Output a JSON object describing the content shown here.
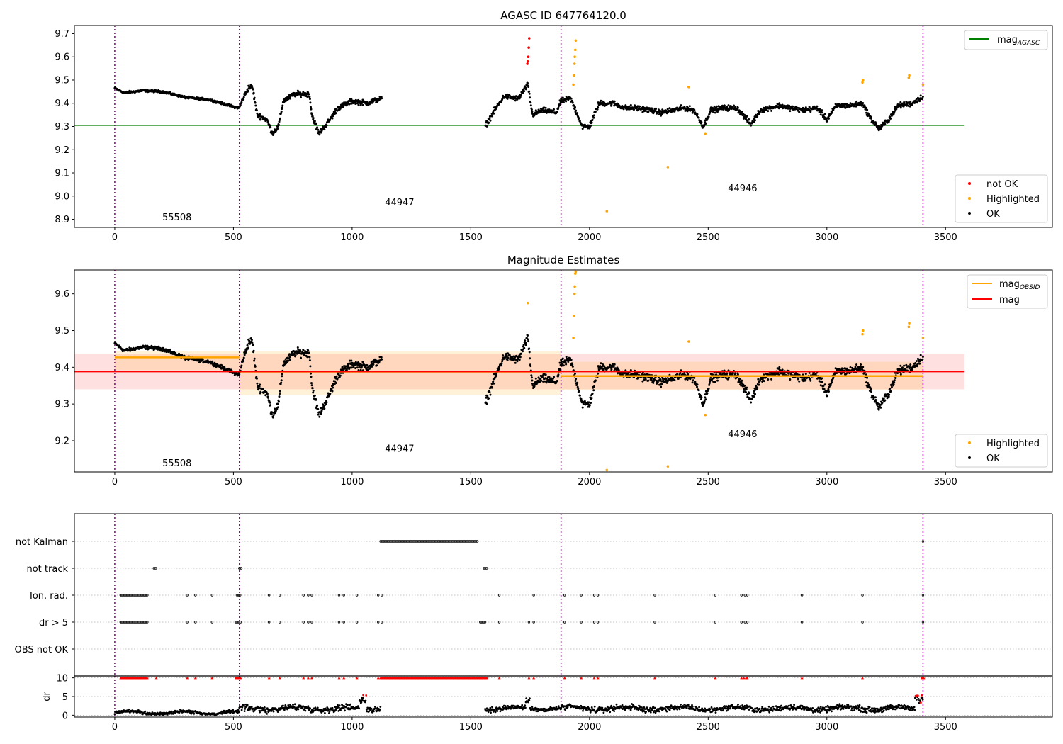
{
  "figure": {
    "panel1_title": "AGASC ID 647764120.0",
    "panel2_title": "Magnitude Estimates"
  },
  "chart_data": [
    {
      "type": "scatter",
      "title": "AGASC ID 647764120.0",
      "xlim": [
        -170,
        3950
      ],
      "ylim": [
        8.865,
        9.735
      ],
      "xticks": [
        0,
        500,
        1000,
        1500,
        2000,
        2500,
        3000,
        3500
      ],
      "yticks": [
        8.9,
        9.0,
        9.1,
        9.2,
        9.3,
        9.4,
        9.5,
        9.6,
        9.7
      ],
      "obsid_boundaries": [
        0,
        525,
        1880,
        3405
      ],
      "obsid_labels": [
        {
          "text": "55508",
          "x": 262,
          "y": 8.895
        },
        {
          "text": "44947",
          "x": 1200,
          "y": 8.96
        },
        {
          "text": "44946",
          "x": 2645,
          "y": 9.02
        }
      ],
      "reference_lines": [
        {
          "name": "mag_AGASC",
          "y": 9.305,
          "x": [
            -170,
            3580
          ],
          "color": "#008000"
        }
      ],
      "series": [
        {
          "name": "not OK",
          "color": "#ff0000",
          "points": [
            [
              1740,
              9.58
            ],
            [
              1742,
              9.6
            ],
            [
              1744,
              9.64
            ],
            [
              1746,
              9.68
            ],
            [
              1738,
              9.57
            ]
          ]
        },
        {
          "name": "Highlighted",
          "color": "#ffa500",
          "points": [
            [
              1740,
              9.58
            ],
            [
              1932,
              9.48
            ],
            [
              1935,
              9.52
            ],
            [
              1937,
              9.57
            ],
            [
              1938,
              9.6
            ],
            [
              1940,
              9.63
            ],
            [
              1942,
              9.67
            ],
            [
              2073,
              8.935
            ],
            [
              2330,
              9.125
            ],
            [
              2418,
              9.47
            ],
            [
              2488,
              9.27
            ],
            [
              3150,
              9.49
            ],
            [
              3152,
              9.5
            ],
            [
              3345,
              9.51
            ],
            [
              3347,
              9.52
            ],
            [
              3405,
              9.48
            ]
          ]
        }
      ],
      "legend_lines": [
        {
          "name": "mag",
          "sub": "AGASC",
          "color": "#008000"
        }
      ],
      "legend_points": [
        {
          "name": "not OK",
          "color": "#ff0000"
        },
        {
          "name": "Highlighted",
          "color": "#ffa500"
        },
        {
          "name": "OK",
          "color": "#000000"
        }
      ]
    },
    {
      "type": "scatter",
      "title": "Magnitude Estimates",
      "xlim": [
        -170,
        3950
      ],
      "ylim": [
        9.115,
        9.665
      ],
      "xticks": [
        0,
        500,
        1000,
        1500,
        2000,
        2500,
        3000,
        3500
      ],
      "yticks": [
        9.2,
        9.3,
        9.4,
        9.5,
        9.6
      ],
      "obsid_boundaries": [
        0,
        525,
        1880,
        3405
      ],
      "obsid_labels": [
        {
          "text": "55508",
          "x": 262,
          "y": 9.13
        },
        {
          "text": "44947",
          "x": 1200,
          "y": 9.17
        },
        {
          "text": "44946",
          "x": 2645,
          "y": 9.21
        }
      ],
      "mag": {
        "y": 9.388,
        "band": [
          9.34,
          9.437
        ],
        "x": [
          -170,
          3580
        ],
        "color": "#ff0000"
      },
      "mag_obsid": [
        {
          "x": [
            0,
            525
          ],
          "y": 9.427,
          "band": [
            9.392,
            9.445
          ]
        },
        {
          "x": [
            525,
            1880
          ],
          "y": 9.388,
          "band": [
            9.325,
            9.445
          ]
        },
        {
          "x": [
            1880,
            3405
          ],
          "y": 9.376,
          "band": [
            9.338,
            9.415
          ]
        }
      ],
      "series": [
        {
          "name": "Highlighted",
          "color": "#ffa500",
          "points": [
            [
              1740,
              9.575
            ],
            [
              1932,
              9.48
            ],
            [
              1935,
              9.54
            ],
            [
              1937,
              9.6
            ],
            [
              1938,
              9.62
            ],
            [
              1940,
              9.655
            ],
            [
              1942,
              9.66
            ],
            [
              2073,
              9.12
            ],
            [
              2330,
              9.13
            ],
            [
              2418,
              9.47
            ],
            [
              2488,
              9.27
            ],
            [
              3150,
              9.49
            ],
            [
              3152,
              9.5
            ],
            [
              3345,
              9.51
            ],
            [
              3347,
              9.52
            ],
            [
              3405,
              9.48
            ]
          ]
        }
      ],
      "legend_lines": [
        {
          "name": "mag",
          "sub": "OBSID",
          "color": "#ffa500"
        },
        {
          "name": "mag",
          "sub": "",
          "color": "#ff0000"
        }
      ],
      "legend_points": [
        {
          "name": "Highlighted",
          "color": "#ffa500"
        },
        {
          "name": "OK",
          "color": "#000000"
        }
      ]
    },
    {
      "type": "scatter",
      "xlim": [
        -170,
        3950
      ],
      "categories": [
        "not Kalman",
        "not track",
        "Ion. rad.",
        "dr > 5",
        "OBS not OK"
      ],
      "obsid_boundaries": [
        0,
        525,
        1880,
        3405
      ],
      "flags": [
        {
          "name": "not Kalman",
          "ranges": [
            [
              1120,
              1530
            ]
          ],
          "points": [
            3405
          ]
        },
        {
          "name": "not track",
          "ranges": [
            [
              165,
              175
            ],
            [
              525,
              535
            ],
            [
              1555,
              1570
            ]
          ],
          "points": []
        },
        {
          "name": "Ion. rad.",
          "ranges": [
            [
              25,
              140
            ],
            [
              520,
              530
            ]
          ],
          "points": [
            305,
            340,
            410,
            515,
            650,
            695,
            795,
            815,
            830,
            945,
            965,
            1020,
            1110,
            1125,
            1620,
            1765,
            1895,
            1965,
            2020,
            2035,
            2275,
            2530,
            2640,
            2655,
            2665,
            2895,
            3150,
            3405
          ]
        },
        {
          "name": "dr > 5",
          "ranges": [
            [
              25,
              140
            ],
            [
              510,
              530
            ],
            [
              1540,
              1560
            ]
          ],
          "points": [
            305,
            340,
            410,
            650,
            695,
            795,
            815,
            830,
            945,
            965,
            1020,
            1110,
            1125,
            1620,
            1745,
            1765,
            1895,
            1965,
            2020,
            2035,
            2275,
            2530,
            2640,
            2655,
            2665,
            2895,
            3150,
            3405
          ]
        },
        {
          "name": "OBS not OK",
          "ranges": [],
          "points": []
        }
      ]
    },
    {
      "type": "scatter",
      "xlim": [
        -170,
        3950
      ],
      "ylim": [
        -0.5,
        10.5
      ],
      "ylabel": "dr",
      "yticks": [
        0,
        5,
        10
      ],
      "xticks": [
        0,
        500,
        1000,
        1500,
        2000,
        2500,
        3000,
        3500
      ],
      "obsid_boundaries": [
        0,
        525,
        1880,
        3405
      ],
      "threshold": 5,
      "capped_value": 10,
      "segments": [
        {
          "x": [
            0,
            525
          ],
          "level": 0.7,
          "noise": 0.5
        },
        {
          "x": [
            525,
            1120
          ],
          "level": 1.8,
          "noise": 1.0
        },
        {
          "x": [
            1560,
            1880
          ],
          "level": 1.8,
          "noise": 0.8
        },
        {
          "x": [
            1880,
            3405
          ],
          "level": 1.8,
          "noise": 0.9
        }
      ],
      "capped_ranges": [
        [
          25,
          140
        ],
        [
          510,
          530
        ],
        [
          1120,
          1570
        ],
        [
          3400,
          3408
        ]
      ],
      "capped_points": [
        175,
        305,
        340,
        410,
        650,
        695,
        795,
        815,
        830,
        945,
        965,
        1020,
        1110,
        1620,
        1745,
        1765,
        1895,
        1965,
        2020,
        2035,
        2275,
        2530,
        2640,
        2650,
        2660,
        2665,
        2895,
        3150,
        3405
      ]
    }
  ]
}
